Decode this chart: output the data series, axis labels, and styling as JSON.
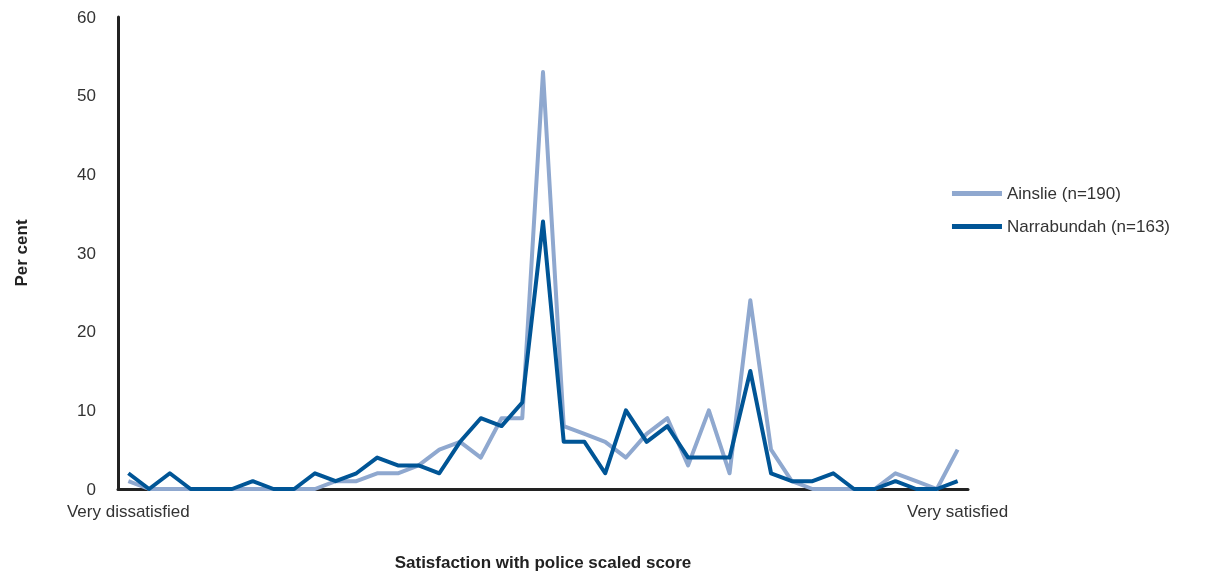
{
  "chart_data": {
    "type": "line",
    "xlabel": "Satisfaction with police scaled score",
    "ylabel": "Per cent",
    "categories": [
      "Very dissatisfied",
      null,
      null,
      null,
      null,
      null,
      null,
      null,
      null,
      null,
      null,
      null,
      null,
      null,
      null,
      null,
      null,
      null,
      null,
      null,
      null,
      null,
      null,
      null,
      null,
      null,
      null,
      null,
      null,
      null,
      null,
      null,
      null,
      null,
      null,
      null,
      null,
      null,
      null,
      null,
      "Very satisfied"
    ],
    "series": [
      {
        "name": "Ainslie (n=190)",
        "color": "#8fa8cf",
        "values": [
          1,
          0,
          0,
          0,
          0,
          0,
          0,
          0,
          0,
          0,
          1,
          1,
          2,
          2,
          3,
          5,
          6,
          4,
          9,
          9,
          53,
          8,
          7,
          6,
          4,
          7,
          9,
          3,
          10,
          2,
          24,
          5,
          1,
          0,
          0,
          0,
          0,
          2,
          1,
          0,
          5
        ]
      },
      {
        "name": "Narrabundah (n=163)",
        "color": "#005596",
        "values": [
          2,
          0,
          2,
          0,
          0,
          0,
          1,
          0,
          0,
          2,
          1,
          2,
          4,
          3,
          3,
          2,
          6,
          9,
          8,
          11,
          34,
          6,
          6,
          2,
          10,
          6,
          8,
          4,
          4,
          4,
          15,
          2,
          1,
          1,
          2,
          0,
          0,
          1,
          0,
          0,
          1
        ]
      }
    ],
    "ylim": [
      0,
      60
    ],
    "yticks": [
      0,
      10,
      20,
      30,
      40,
      50,
      60
    ],
    "grid": false,
    "legend": "right",
    "marker": "none",
    "line_style": "solid"
  }
}
